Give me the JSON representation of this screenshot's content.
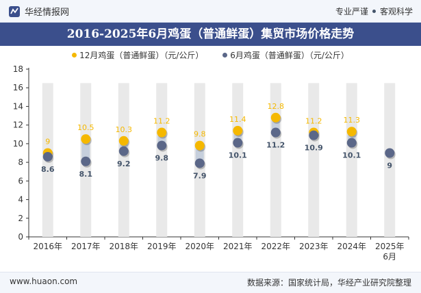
{
  "header": {
    "brand": "华经情报网",
    "tagline_left": "专业严谨",
    "tagline_right": "客观科学"
  },
  "colors": {
    "dec": "#f5b800",
    "jun": "#5b6788",
    "title_bg": "#3b4f8c"
  },
  "chart_data": {
    "type": "line",
    "title": "2016-2025年6月鸡蛋（普通鲜蛋）集贸市场价格走势",
    "categories": [
      "2016年",
      "2017年",
      "2018年",
      "2019年",
      "2020年",
      "2021年",
      "2022年",
      "2023年",
      "2024年",
      "2025年6月"
    ],
    "series": [
      {
        "name": "12月鸡蛋（普通鲜蛋）（元/公斤）",
        "values": [
          9,
          10.5,
          10.3,
          11.2,
          9.8,
          11.4,
          12.8,
          11.2,
          11.3,
          null
        ]
      },
      {
        "name": "6月鸡蛋（普通鲜蛋）（元/公斤）",
        "values": [
          8.6,
          8.1,
          9.2,
          9.8,
          7.9,
          10.1,
          11.2,
          10.9,
          10.1,
          9
        ]
      }
    ],
    "ylim": [
      0,
      18
    ],
    "yticks": [
      0,
      2,
      4,
      6,
      8,
      10,
      12,
      14,
      16,
      18
    ],
    "xlabel": "",
    "ylabel": "",
    "legend": "top-center",
    "grid": false
  },
  "footer": {
    "url": "www.huaon.com",
    "source": "数据来源：国家统计局，华经产业研究院整理"
  }
}
